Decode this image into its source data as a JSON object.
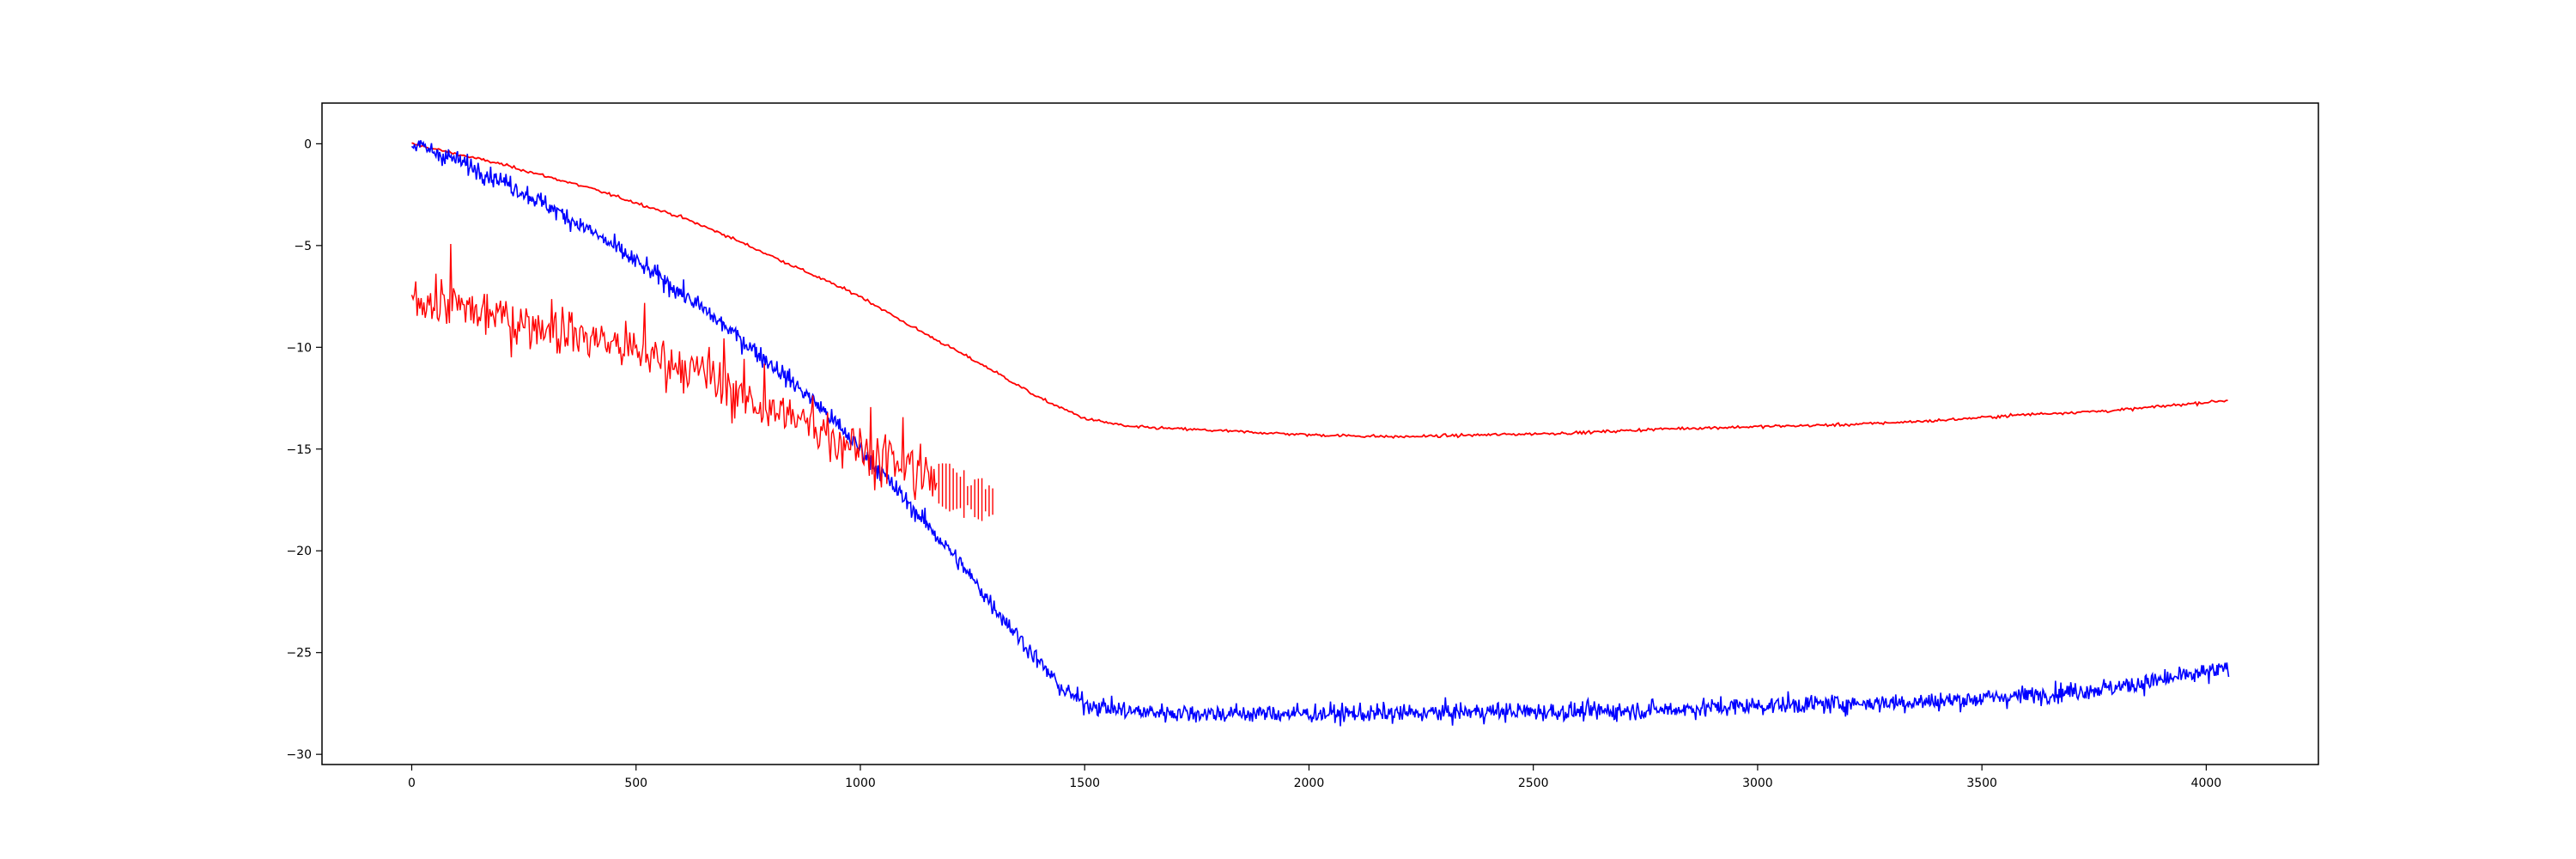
{
  "chart_data": {
    "type": "line",
    "title": "",
    "xlabel": "",
    "ylabel": "",
    "xlim": [
      -200,
      4250
    ],
    "ylim": [
      -30.5,
      2.0
    ],
    "x_ticks": [
      0,
      500,
      1000,
      1500,
      2000,
      2500,
      3000,
      3500,
      4000
    ],
    "y_ticks": [
      0,
      -5,
      -10,
      -15,
      -20,
      -25,
      -30
    ],
    "x_tick_labels": [
      "0",
      "500",
      "1000",
      "1500",
      "2000",
      "2500",
      "3000",
      "3500",
      "4000"
    ],
    "y_tick_labels": [
      "0",
      "−5",
      "−10",
      "−15",
      "−20",
      "−25",
      "−30"
    ],
    "grid": false,
    "legend": "none",
    "series": [
      {
        "color": "#ff0000",
        "style": "smooth line",
        "x": [
          0,
          100,
          200,
          300,
          400,
          500,
          600,
          700,
          800,
          900,
          1000,
          1100,
          1200,
          1300,
          1400,
          1500,
          1600,
          1800,
          2000,
          2200,
          2400,
          2600,
          2800,
          3000,
          3200,
          3400,
          3600,
          3800,
          4000,
          4050
        ],
        "y": [
          0,
          -0.5,
          -1.0,
          -1.6,
          -2.2,
          -2.9,
          -3.6,
          -4.5,
          -5.5,
          -6.5,
          -7.5,
          -8.8,
          -10.0,
          -11.2,
          -12.5,
          -13.5,
          -13.9,
          -14.1,
          -14.3,
          -14.4,
          -14.3,
          -14.2,
          -14.0,
          -13.9,
          -13.8,
          -13.6,
          -13.3,
          -13.1,
          -12.7,
          -12.6
        ]
      },
      {
        "color": "#0000ff",
        "style": "noisy line",
        "x": [
          0,
          100,
          200,
          300,
          400,
          500,
          600,
          700,
          800,
          900,
          1000,
          1100,
          1200,
          1300,
          1400,
          1450,
          1500,
          1600,
          1800,
          2000,
          2200,
          2400,
          2600,
          2800,
          3000,
          3200,
          3400,
          3600,
          3800,
          4000,
          4050
        ],
        "y": [
          0,
          -0.8,
          -1.8,
          -3.0,
          -4.3,
          -5.8,
          -7.3,
          -9.0,
          -10.8,
          -12.7,
          -15.0,
          -17.5,
          -20.0,
          -22.8,
          -25.5,
          -26.8,
          -27.5,
          -27.9,
          -28.0,
          -28.0,
          -28.0,
          -27.9,
          -27.9,
          -27.8,
          -27.6,
          -27.5,
          -27.4,
          -27.1,
          -26.7,
          -26.0,
          -25.8
        ]
      },
      {
        "color": "#ff0000",
        "style": "spiky noisy line",
        "x": [
          0,
          100,
          200,
          300,
          400,
          500,
          600,
          700,
          800,
          900,
          1000,
          1100,
          1150,
          1200,
          1250,
          1300
        ],
        "y": [
          -7.5,
          -8.0,
          -8.5,
          -9.0,
          -9.5,
          -10.2,
          -11.0,
          -12.0,
          -13.0,
          -14.0,
          -15.0,
          -16.0,
          -16.5,
          -16.9,
          -17.4,
          -17.6
        ]
      }
    ]
  }
}
